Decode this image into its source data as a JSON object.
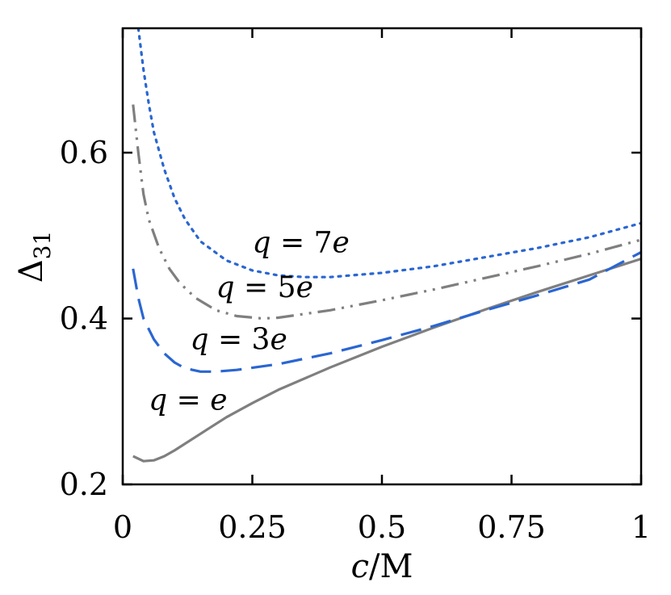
{
  "chart_data": {
    "type": "line",
    "xlabel": "c/M",
    "xlabel_italic_part": "c",
    "xlabel_rest": "/M",
    "ylabel": "Δ31",
    "ylabel_main": "Δ",
    "ylabel_sub": "31",
    "xlim": [
      0,
      1
    ],
    "ylim": [
      0.2,
      0.75
    ],
    "x_ticks": [
      0,
      0.25,
      0.5,
      0.75,
      1
    ],
    "x_tick_labels": [
      "0",
      "0.25",
      "0.5",
      "0.75",
      "1"
    ],
    "y_ticks": [
      0.2,
      0.4,
      0.6
    ],
    "y_tick_labels": [
      "0.2",
      "0.4",
      "0.6"
    ],
    "grid": false,
    "series": [
      {
        "name": "q = e",
        "color": "#7f7f7f",
        "style": "solid",
        "label_x": 0.05,
        "label_y": 0.29,
        "x": [
          0.02,
          0.04,
          0.06,
          0.08,
          0.1,
          0.15,
          0.2,
          0.25,
          0.3,
          0.4,
          0.5,
          0.6,
          0.7,
          0.8,
          0.9,
          1.0
        ],
        "y": [
          0.234,
          0.228,
          0.229,
          0.234,
          0.241,
          0.261,
          0.281,
          0.298,
          0.314,
          0.341,
          0.366,
          0.389,
          0.411,
          0.432,
          0.452,
          0.472
        ]
      },
      {
        "name": "q = 3e",
        "color": "#2a66d2",
        "style": "dashed",
        "label_x": 0.13,
        "label_y": 0.363,
        "x": [
          0.02,
          0.03,
          0.04,
          0.06,
          0.08,
          0.1,
          0.12,
          0.15,
          0.18,
          0.22,
          0.3,
          0.4,
          0.5,
          0.6,
          0.7,
          0.8,
          0.9,
          1.0
        ],
        "y": [
          0.46,
          0.425,
          0.4,
          0.375,
          0.358,
          0.347,
          0.34,
          0.336,
          0.336,
          0.338,
          0.345,
          0.358,
          0.374,
          0.391,
          0.41,
          0.428,
          0.447,
          0.48
        ]
      },
      {
        "name": "q = 5e",
        "color": "#7f7f7f",
        "style": "dashdotdot",
        "label_x": 0.18,
        "label_y": 0.426,
        "x": [
          0.02,
          0.03,
          0.04,
          0.05,
          0.07,
          0.09,
          0.11,
          0.14,
          0.18,
          0.22,
          0.27,
          0.3,
          0.4,
          0.5,
          0.6,
          0.7,
          0.8,
          0.9,
          1.0
        ],
        "y": [
          0.658,
          0.6,
          0.55,
          0.52,
          0.485,
          0.46,
          0.443,
          0.425,
          0.41,
          0.403,
          0.4,
          0.401,
          0.41,
          0.422,
          0.435,
          0.449,
          0.463,
          0.478,
          0.495
        ]
      },
      {
        "name": "q = 7e",
        "color": "#2a66d2",
        "style": "dotted",
        "label_x": 0.25,
        "label_y": 0.48,
        "x": [
          0.03,
          0.04,
          0.05,
          0.06,
          0.08,
          0.1,
          0.12,
          0.15,
          0.2,
          0.25,
          0.3,
          0.35,
          0.4,
          0.5,
          0.6,
          0.7,
          0.8,
          0.9,
          1.0
        ],
        "y": [
          0.75,
          0.7,
          0.66,
          0.625,
          0.58,
          0.545,
          0.52,
          0.493,
          0.47,
          0.458,
          0.452,
          0.45,
          0.45,
          0.455,
          0.463,
          0.474,
          0.485,
          0.498,
          0.515
        ]
      }
    ],
    "annotations": [
      {
        "text_var": "q",
        "text_rest": " = ",
        "text_suffix": "e"
      },
      {
        "text_var": "q",
        "text_rest": " = 3",
        "text_suffix": "e"
      },
      {
        "text_var": "q",
        "text_rest": " = 5",
        "text_suffix": "e"
      },
      {
        "text_var": "q",
        "text_rest": " = 7",
        "text_suffix": "e"
      }
    ]
  }
}
